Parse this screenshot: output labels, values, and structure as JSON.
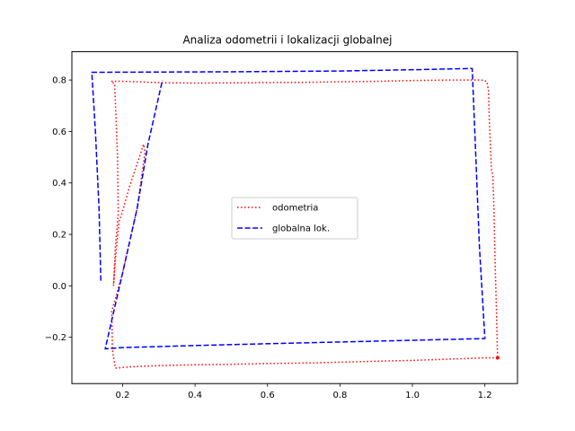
{
  "chart_data": {
    "type": "line",
    "title": "Analiza odometrii i lokalizacji globalnej",
    "xlabel": "",
    "ylabel": "",
    "xlim": [
      0.06,
      1.29
    ],
    "ylim": [
      -0.38,
      0.91
    ],
    "xticks": [
      0.2,
      0.4,
      0.6,
      0.8,
      1.0,
      1.2
    ],
    "xtick_labels": [
      "0.2",
      "0.4",
      "0.6",
      "0.8",
      "1.0",
      "1.2"
    ],
    "yticks": [
      -0.2,
      0.0,
      0.2,
      0.4,
      0.6,
      0.8
    ],
    "ytick_labels": [
      "−0.2",
      "0.0",
      "0.2",
      "0.4",
      "0.6",
      "0.8"
    ],
    "grid": false,
    "legend_position": "center",
    "series": [
      {
        "name": "odometria",
        "color": "#ff0000",
        "style": "dotted",
        "end_marker": true,
        "points": [
          [
            1.235,
            -0.28
          ],
          [
            1.2,
            -0.28
          ],
          [
            1.1,
            -0.285
          ],
          [
            1.0,
            -0.29
          ],
          [
            0.9,
            -0.293
          ],
          [
            0.8,
            -0.297
          ],
          [
            0.7,
            -0.3
          ],
          [
            0.6,
            -0.302
          ],
          [
            0.5,
            -0.305
          ],
          [
            0.4,
            -0.307
          ],
          [
            0.3,
            -0.31
          ],
          [
            0.22,
            -0.315
          ],
          [
            0.18,
            -0.32
          ],
          [
            0.172,
            -0.25
          ],
          [
            0.17,
            -0.1
          ],
          [
            0.2,
            0.05
          ],
          [
            0.24,
            0.3
          ],
          [
            0.262,
            0.52
          ],
          [
            0.258,
            0.55
          ],
          [
            0.22,
            0.39
          ],
          [
            0.2,
            0.29
          ],
          [
            0.19,
            0.25
          ],
          [
            0.18,
            0.1
          ],
          [
            0.175,
            0.0
          ],
          [
            0.18,
            0.15
          ],
          [
            0.188,
            0.28
          ],
          [
            0.186,
            0.5
          ],
          [
            0.182,
            0.65
          ],
          [
            0.178,
            0.785
          ],
          [
            0.168,
            0.795
          ],
          [
            0.2,
            0.795
          ],
          [
            0.3,
            0.79
          ],
          [
            0.4,
            0.788
          ],
          [
            0.5,
            0.789
          ],
          [
            0.6,
            0.79
          ],
          [
            0.7,
            0.791
          ],
          [
            0.8,
            0.793
          ],
          [
            0.9,
            0.795
          ],
          [
            1.0,
            0.798
          ],
          [
            1.1,
            0.8
          ],
          [
            1.19,
            0.8
          ],
          [
            1.205,
            0.795
          ],
          [
            1.21,
            0.76
          ],
          [
            1.212,
            0.65
          ],
          [
            1.215,
            0.55
          ],
          [
            1.218,
            0.45
          ],
          [
            1.222,
            0.43
          ],
          [
            1.225,
            0.3
          ],
          [
            1.228,
            0.1
          ],
          [
            1.232,
            -0.1
          ],
          [
            1.235,
            -0.28
          ]
        ]
      },
      {
        "name": "globalna lok.",
        "color": "#0000ff",
        "style": "dashed",
        "end_marker": false,
        "points": [
          [
            0.14,
            0.02
          ],
          [
            0.135,
            0.3
          ],
          [
            0.125,
            0.6
          ],
          [
            0.115,
            0.83
          ],
          [
            0.5,
            0.832
          ],
          [
            0.8,
            0.835
          ],
          [
            1.0,
            0.84
          ],
          [
            1.165,
            0.845
          ],
          [
            1.175,
            0.5
          ],
          [
            1.185,
            0.15
          ],
          [
            1.2,
            -0.205
          ],
          [
            0.9,
            -0.215
          ],
          [
            0.6,
            -0.225
          ],
          [
            0.4,
            -0.232
          ],
          [
            0.2,
            -0.24
          ],
          [
            0.152,
            -0.245
          ],
          [
            0.2,
            0.05
          ],
          [
            0.24,
            0.3
          ],
          [
            0.27,
            0.55
          ],
          [
            0.31,
            0.8
          ]
        ]
      }
    ]
  }
}
